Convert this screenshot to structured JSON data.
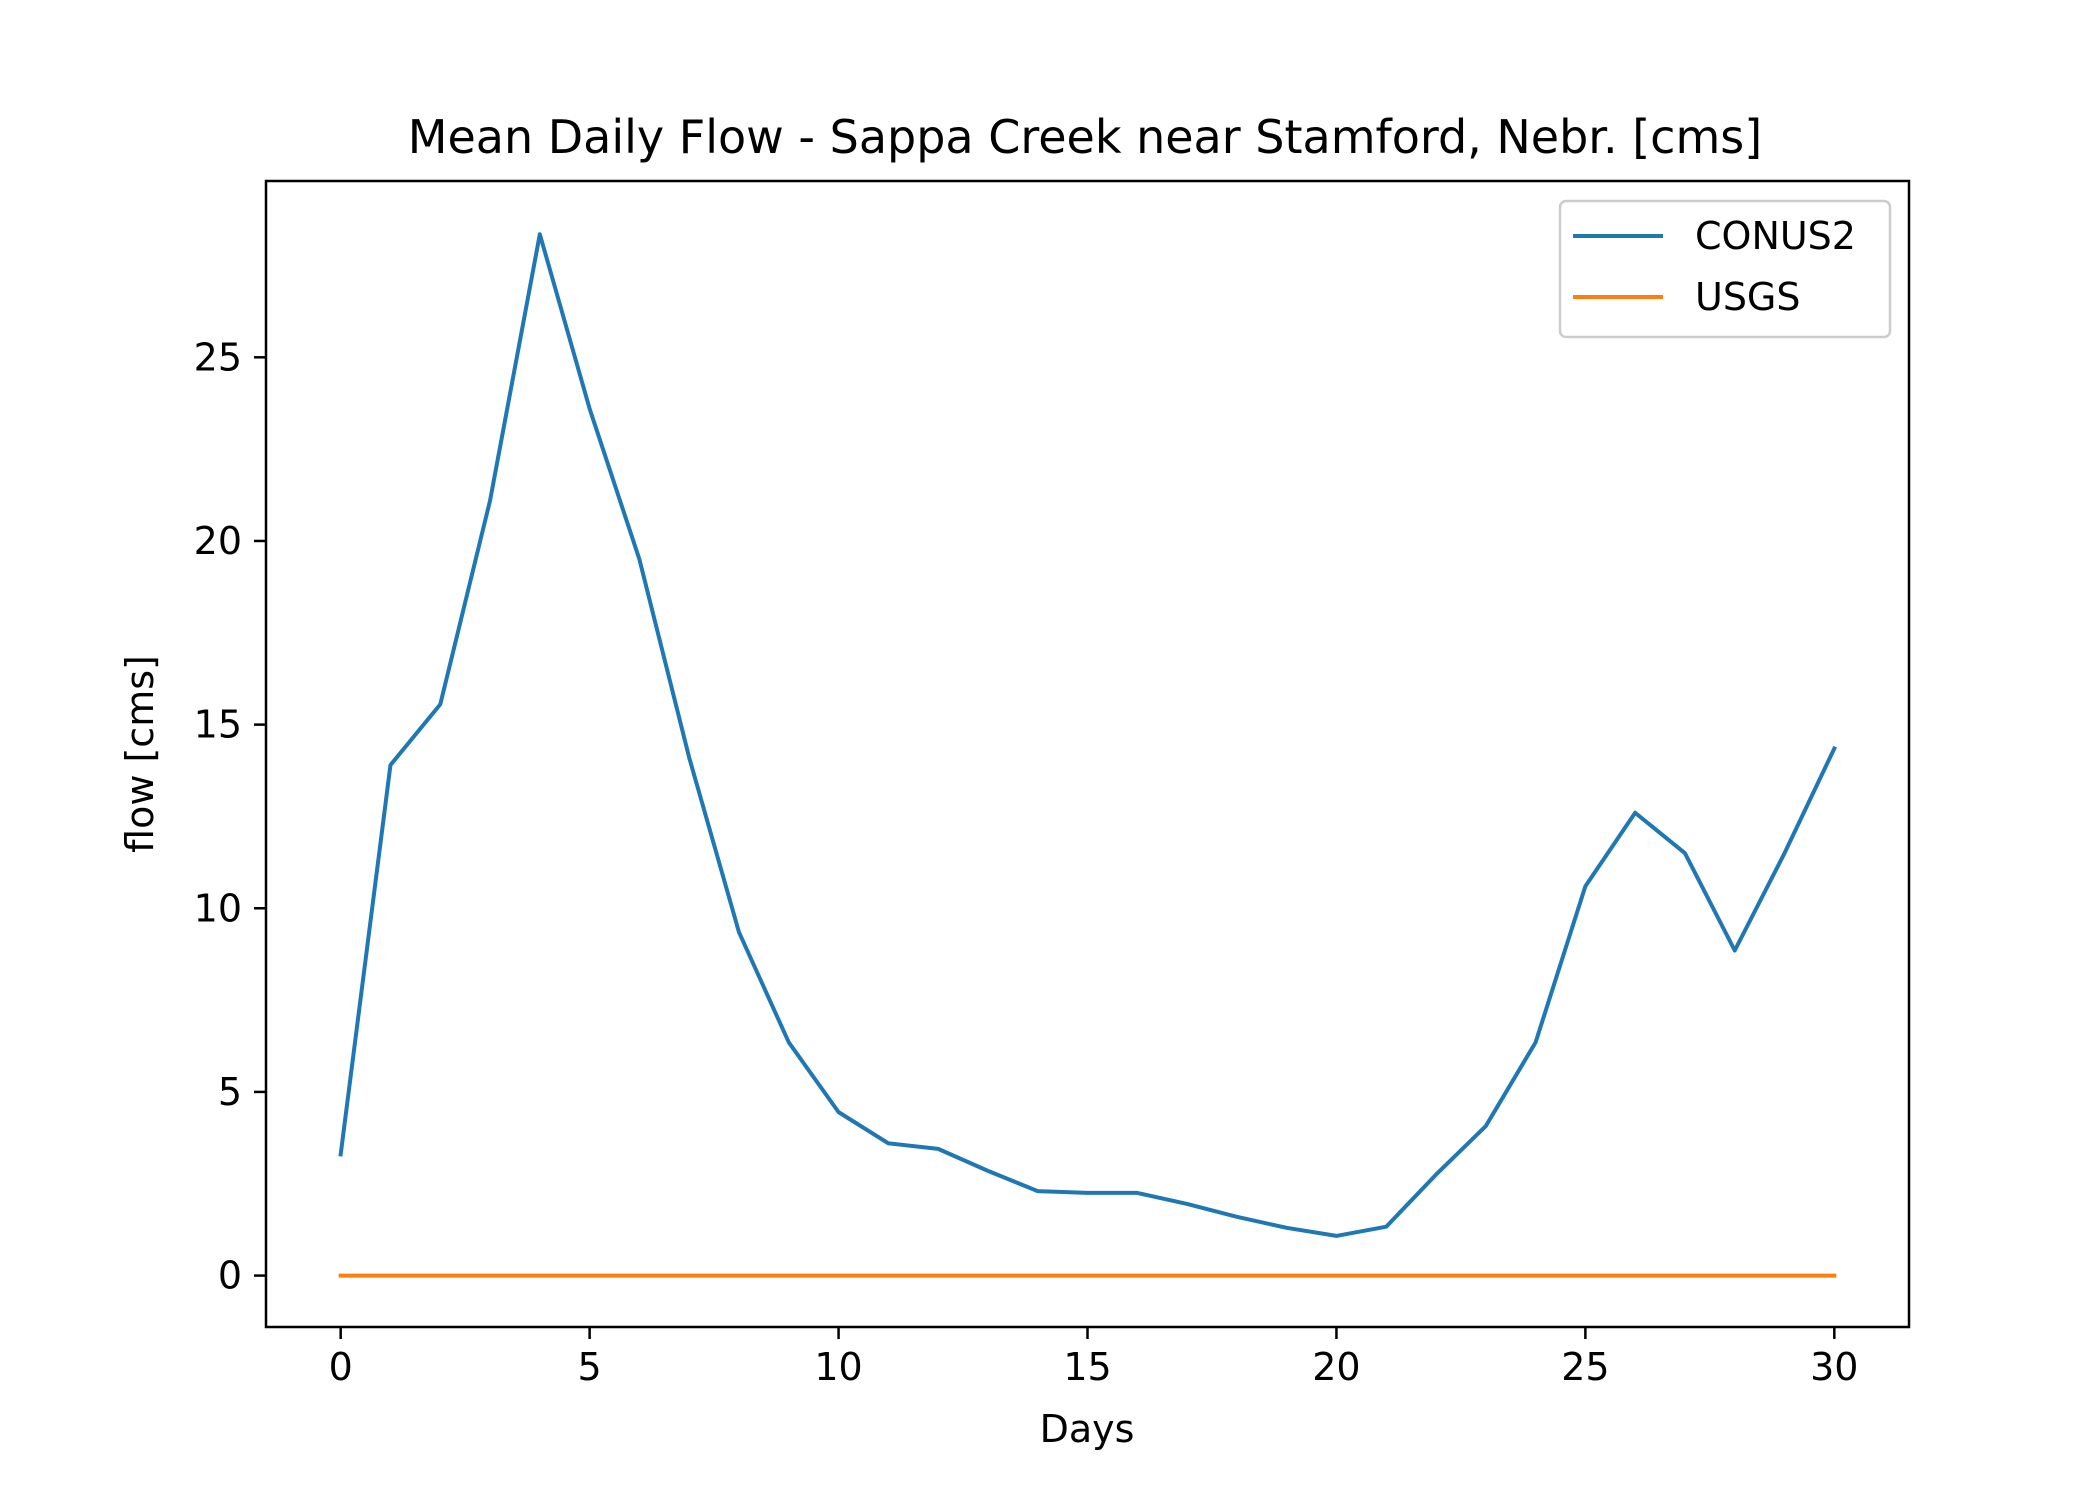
{
  "chart_data": {
    "type": "line",
    "title": "Mean Daily Flow - Sappa Creek near Stamford, Nebr. [cms]",
    "xlabel": "Days",
    "ylabel": "flow [cms]",
    "xlim": [
      -1.5,
      31.5
    ],
    "ylim": [
      -1.4,
      29.8
    ],
    "xticks": [
      0,
      5,
      10,
      15,
      20,
      25,
      30
    ],
    "yticks": [
      0,
      5,
      10,
      15,
      20,
      25
    ],
    "grid": false,
    "legend_position": "top-right",
    "x": [
      0,
      1,
      2,
      3,
      4,
      5,
      6,
      7,
      8,
      9,
      10,
      11,
      12,
      13,
      14,
      15,
      16,
      17,
      18,
      19,
      20,
      21,
      22,
      23,
      24,
      25,
      26,
      27,
      28,
      29,
      30
    ],
    "series": [
      {
        "name": "CONUS2",
        "color": "#1f77b4",
        "values": [
          3.3,
          13.9,
          15.55,
          21.1,
          28.35,
          23.6,
          19.5,
          14.1,
          9.35,
          6.35,
          4.45,
          3.6,
          3.45,
          2.85,
          2.3,
          2.25,
          2.25,
          1.95,
          1.6,
          1.3,
          1.08,
          1.33,
          2.75,
          4.07,
          6.35,
          10.6,
          12.6,
          11.5,
          8.85,
          11.5,
          14.35
        ]
      },
      {
        "name": "USGS",
        "color": "#ff7f0e",
        "values": [
          0,
          0,
          0,
          0,
          0,
          0,
          0,
          0,
          0,
          0,
          0,
          0,
          0,
          0,
          0,
          0,
          0,
          0,
          0,
          0,
          0,
          0,
          0,
          0,
          0,
          0,
          0,
          0,
          0,
          0,
          0
        ]
      }
    ]
  }
}
